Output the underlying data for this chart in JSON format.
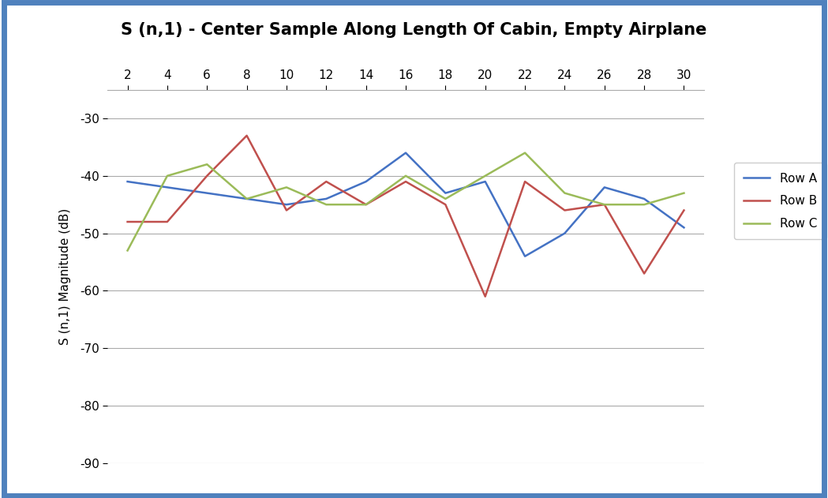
{
  "title": "S (n,1) - Center Sample Along Length Of Cabin, Empty Airplane",
  "ylabel": "S (n,1) Magnitude (dB)",
  "x_values": [
    2,
    4,
    6,
    8,
    10,
    12,
    14,
    16,
    18,
    20,
    22,
    24,
    26,
    28,
    30
  ],
  "row_a": [
    -41,
    -42,
    -43,
    -44,
    -45,
    -44,
    -41,
    -36,
    -43,
    -41,
    -54,
    -50,
    -42,
    -44,
    -49
  ],
  "row_b": [
    -48,
    -48,
    -40,
    -33,
    -46,
    -41,
    -45,
    -41,
    -45,
    -61,
    -41,
    -46,
    -45,
    -57,
    -46
  ],
  "row_c": [
    -53,
    -40,
    -38,
    -44,
    -42,
    -45,
    -45,
    -40,
    -44,
    -40,
    -36,
    -43,
    -45,
    -45,
    -43
  ],
  "color_a": "#4472C4",
  "color_b": "#C0504D",
  "color_c": "#9BBB59",
  "ylim": [
    -90,
    -25
  ],
  "ytick_vals": [
    -90,
    -80,
    -70,
    -60,
    -50,
    -40,
    -30
  ],
  "ytick_labels": [
    "-90",
    "-80",
    "-70",
    "-60",
    "-50",
    "-40",
    "-30"
  ],
  "xticks": [
    2,
    4,
    6,
    8,
    10,
    12,
    14,
    16,
    18,
    20,
    22,
    24,
    26,
    28,
    30
  ],
  "border_color": "#4F81BD",
  "legend_labels": [
    "Row A",
    "Row B",
    "Row C"
  ],
  "title_fontsize": 15,
  "axis_fontsize": 11,
  "tick_fontsize": 11,
  "line_width": 1.8,
  "grid_color": "#AAAAAA",
  "bg_color": "#FFFFFF"
}
